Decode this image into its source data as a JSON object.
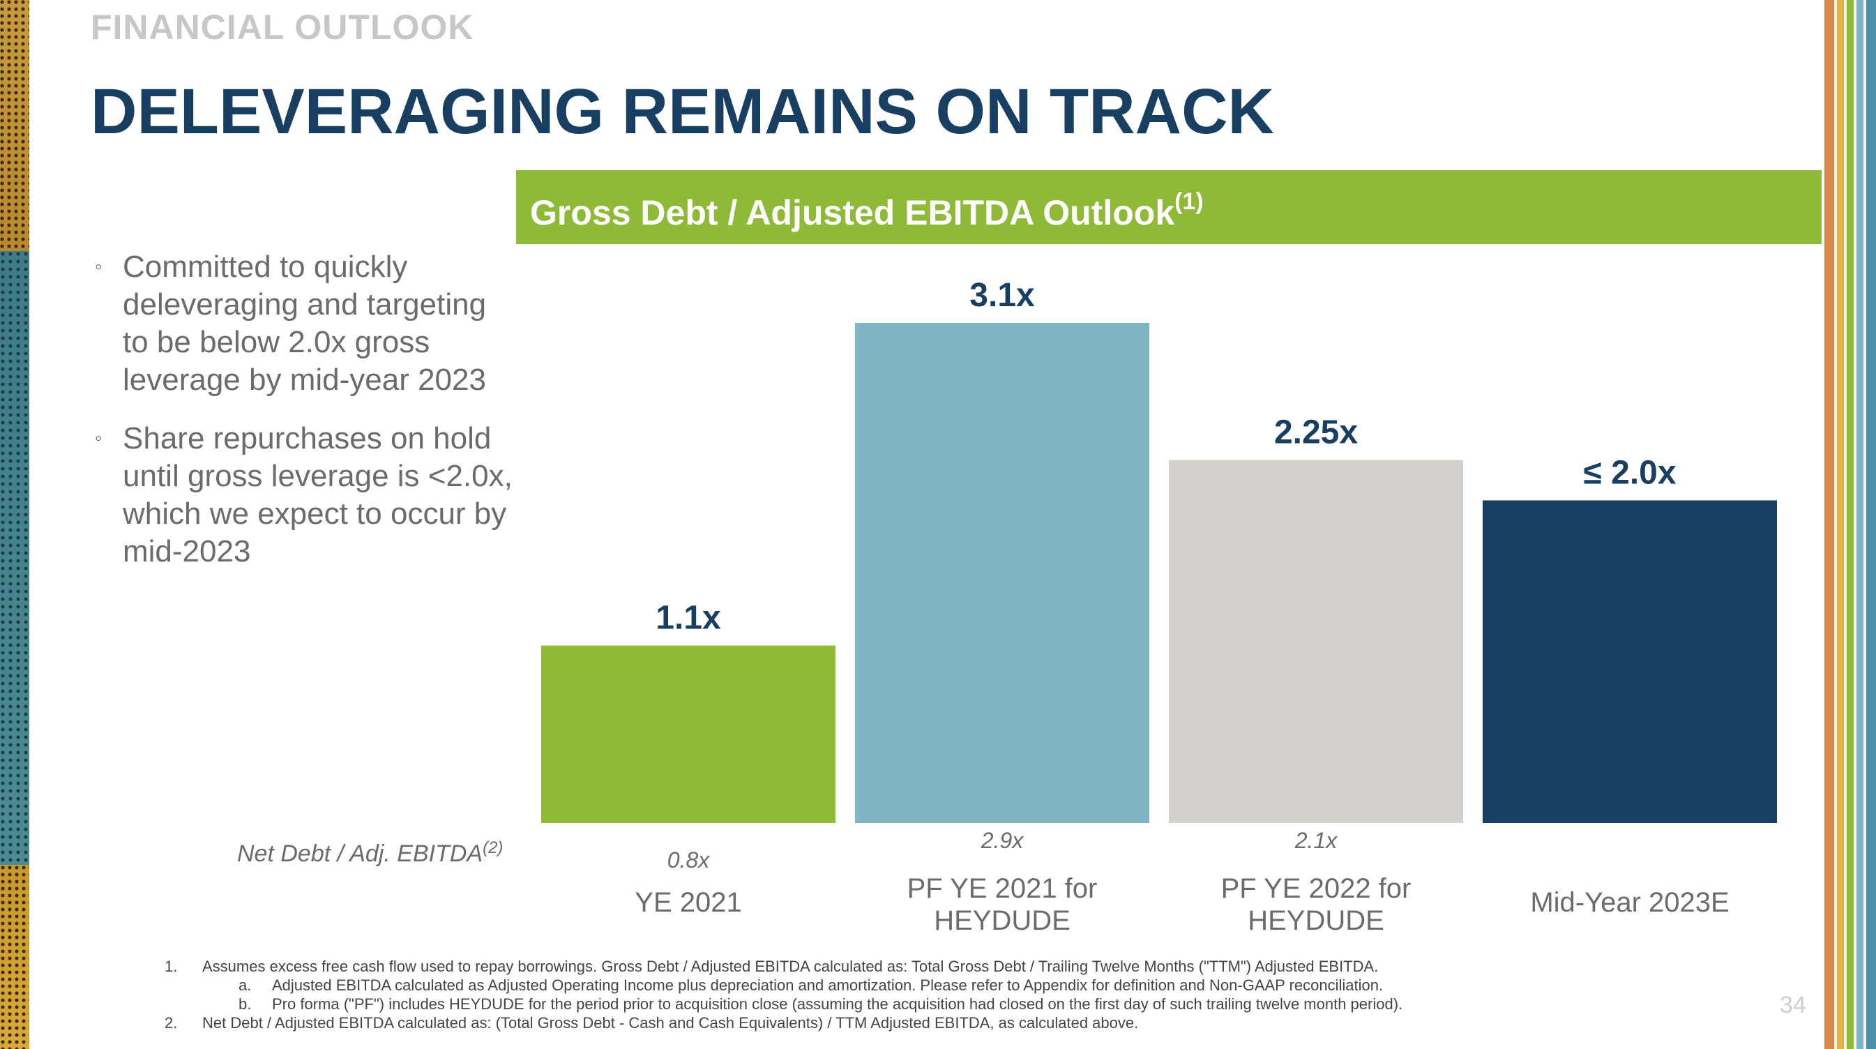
{
  "slide": {
    "overline": "FINANCIAL OUTLOOK",
    "title": "DELEVERAGING REMAINS ON TRACK",
    "page_number": "34"
  },
  "bullets": [
    "Committed to quickly deleveraging and targeting to be below 2.0x gross leverage by mid-year 2023",
    "Share repurchases on hold until gross leverage is <2.0x, which we expect to occur by mid-2023"
  ],
  "bullet_marker": "◦",
  "chart_header": {
    "title": "Gross Debt / Adjusted EBITDA Outlook",
    "superscript": "(1)"
  },
  "net_debt_row": {
    "label": "Net Debt / Adj. EBITDA",
    "superscript": "(2)"
  },
  "chart_data": {
    "type": "bar",
    "title": "Gross Debt / Adjusted EBITDA Outlook",
    "categories": [
      [
        "YE 2021"
      ],
      [
        "PF YE 2021 for",
        "HEYDUDE"
      ],
      [
        "PF YE 2022 for",
        "HEYDUDE"
      ],
      [
        "Mid-Year 2023E"
      ]
    ],
    "values": [
      1.1,
      3.1,
      2.25,
      2.0
    ],
    "value_labels": [
      "1.1x",
      "3.1x",
      "2.25x",
      "≤ 2.0x"
    ],
    "secondary_values": [
      0.8,
      2.9,
      2.1,
      null
    ],
    "secondary_labels": [
      "0.8x",
      "2.9x",
      "2.1x",
      ""
    ],
    "bar_colors": [
      "#8fba37",
      "#81b5c3",
      "#d3cfca",
      "#183f61"
    ],
    "label_color": "#183f61",
    "ylim": [
      0,
      3.1
    ],
    "grid": false,
    "xlabel": "",
    "ylabel": ""
  },
  "footnotes": [
    {
      "num": "1.",
      "text": "Assumes excess free cash flow used to repay borrowings. Gross Debt / Adjusted EBITDA calculated as: Total Gross Debt / Trailing Twelve Months (\"TTM\") Adjusted EBITDA.",
      "sub": false
    },
    {
      "num": "a.",
      "text": "Adjusted EBITDA calculated as Adjusted Operating Income plus depreciation and amortization. Please refer to Appendix for definition and Non-GAAP reconciliation.",
      "sub": true
    },
    {
      "num": "b.",
      "text": "Pro forma (\"PF\") includes HEYDUDE for the period prior to acquisition close (assuming the acquisition had closed on the first day of such trailing twelve month period).",
      "sub": true
    },
    {
      "num": "2.",
      "text": "Net Debt / Adjusted EBITDA calculated as: (Total Gross Debt - Cash and Cash Equivalents) / TTM Adjusted EBITDA, as calculated above.",
      "sub": false
    }
  ],
  "decor": {
    "stripe_colors": [
      "#d9884a",
      "#f2f2f2",
      "#e2b24a",
      "#f2f2f2",
      "#8fba37",
      "#f2f2f2",
      "#81b5c3",
      "#f2f2f2",
      "#4b8fa8"
    ]
  }
}
